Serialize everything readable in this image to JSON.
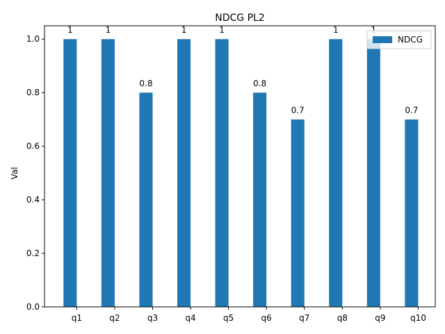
{
  "chart_data": {
    "type": "bar",
    "title": "NDCG PL2",
    "xlabel": "",
    "ylabel": "Val",
    "categories": [
      "q1",
      "q2",
      "q3",
      "q4",
      "q5",
      "q6",
      "q7",
      "q8",
      "q9",
      "q10"
    ],
    "series": [
      {
        "name": "NDCG",
        "color": "#1f77b4",
        "values": [
          1,
          1,
          0.8,
          1,
          1,
          0.8,
          0.7,
          1,
          1,
          0.7
        ],
        "labels": [
          "1",
          "1",
          "0.8",
          "1",
          "1",
          "0.8",
          "0.7",
          "1",
          "1",
          "0.7"
        ]
      }
    ],
    "ylim": [
      0,
      1.05
    ],
    "yticks": [
      0.0,
      0.2,
      0.4,
      0.6,
      0.8,
      1.0
    ],
    "ytick_labels": [
      "0.0",
      "0.2",
      "0.4",
      "0.6",
      "0.8",
      "1.0"
    ],
    "grid": false,
    "legend": "top-right"
  }
}
